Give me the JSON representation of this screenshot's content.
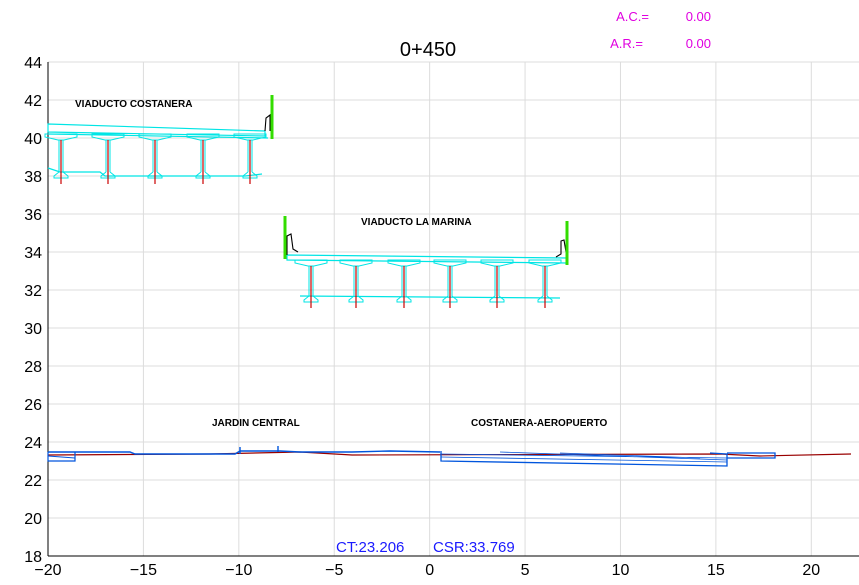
{
  "title": "0+450",
  "ac": {
    "label": "A.C.=",
    "value": "0.00"
  },
  "ar": {
    "label": "A.R.=",
    "value": "0.00"
  },
  "labels": {
    "costanera_viaduct": "VIADUCTO COSTANERA",
    "marina_viaduct": "VIADUCTO LA MARINA",
    "jardin": "JARDIN CENTRAL",
    "aeropuerto": "COSTANERA-AEROPUERTO"
  },
  "ct": "CT:23.206",
  "csr": "CSR:33.769",
  "axes": {
    "x_ticks": [
      -20,
      -15,
      -10,
      -5,
      0,
      5,
      10,
      15,
      20
    ],
    "y_ticks": [
      18,
      20,
      22,
      24,
      26,
      28,
      30,
      32,
      34,
      36,
      38,
      40,
      42,
      44
    ],
    "x_range": [
      -20,
      22.5
    ],
    "y_range": [
      18,
      44
    ]
  },
  "colors": {
    "grid": "#dcdcdc",
    "axis_text": "#000000",
    "viaduct": "#00e5e5",
    "rail": "#33dd00",
    "pier": "#cc0000",
    "ground": "#0055dd",
    "terrain": "#990000",
    "info": "#e000e0",
    "ct_text": "#1a1aff"
  }
}
